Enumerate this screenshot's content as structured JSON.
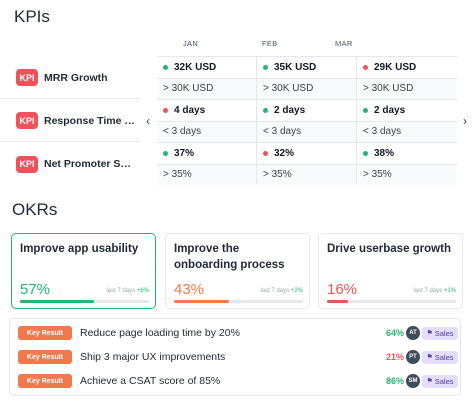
{
  "kpis_title": "KPIs",
  "okrs_title": "OKRs",
  "months": [
    "JAN",
    "FEB",
    "MAR"
  ],
  "kpi_badge": "KPI",
  "kpis": [
    {
      "name": "MRR Growth",
      "values": [
        {
          "v": "32K USD",
          "s": "green"
        },
        {
          "v": "35K USD",
          "s": "green"
        },
        {
          "v": "29K USD",
          "s": "red"
        }
      ],
      "targets": [
        "> 30K USD",
        "> 30K USD",
        "> 30K USD"
      ]
    },
    {
      "name": "Response Time to...",
      "values": [
        {
          "v": "4 days",
          "s": "red"
        },
        {
          "v": "2 days",
          "s": "green"
        },
        {
          "v": "2 days",
          "s": "green"
        }
      ],
      "targets": [
        "< 3 days",
        "< 3 days",
        "< 3 days"
      ]
    },
    {
      "name": "Net Promoter Score",
      "values": [
        {
          "v": "37%",
          "s": "green"
        },
        {
          "v": "32%",
          "s": "red"
        },
        {
          "v": "38%",
          "s": "green"
        }
      ],
      "targets": [
        "> 35%",
        "> 35%",
        "> 35%"
      ]
    }
  ],
  "status_colors": {
    "green": "#22b573",
    "red": "#f0525b"
  },
  "okrs": [
    {
      "title": "Improve app usability",
      "pct": "57%",
      "progress": 0.57,
      "color": "#22b573",
      "last": "last 7 days",
      "delta": "+6%",
      "active": true
    },
    {
      "title": "Improve the onboarding process",
      "pct": "43%",
      "progress": 0.43,
      "color": "#f2794b",
      "last": "last 7 days",
      "delta": "+2%",
      "active": false
    },
    {
      "title": "Drive userbase growth",
      "pct": "16%",
      "progress": 0.16,
      "color": "#f0525b",
      "last": "last 7 days",
      "delta": "+1%",
      "active": false
    }
  ],
  "key_result_badge": "Key Result",
  "key_results": [
    {
      "label": "Reduce page loading time by 20%",
      "pct": "64%",
      "pct_color": "#22b573",
      "owner": "AT",
      "tag": "Sales"
    },
    {
      "label": "Ship 3 major UX improvements",
      "pct": "21%",
      "pct_color": "#f0525b",
      "owner": "PT",
      "tag": "Sales"
    },
    {
      "label": "Achieve a CSAT score of 85%",
      "pct": "86%",
      "pct_color": "#22b573",
      "owner": "SM",
      "tag": "Sales"
    }
  ],
  "icons": {
    "prev": "chevron-left-icon",
    "next": "chevron-right-icon",
    "flag": "flag-icon"
  }
}
